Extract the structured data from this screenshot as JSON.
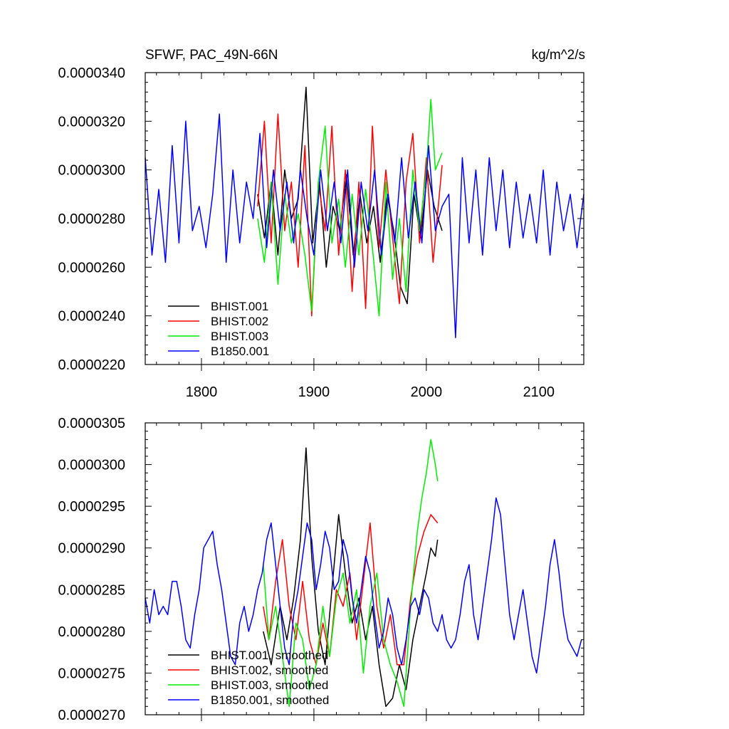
{
  "chart_data": [
    {
      "type": "line",
      "title_left": "SFWF, PAC_49N-66N",
      "title_right": "kg/m^2/s",
      "xlabel": "",
      "ylabel": "",
      "xlim": [
        1750,
        2140
      ],
      "ylim": [
        2.2e-05,
        3.4e-05
      ],
      "x_ticks": [
        1800,
        1900,
        2000,
        2100
      ],
      "x_tick_labels": [
        "1800",
        "1900",
        "2000",
        "2100"
      ],
      "y_ticks": [
        2.2e-05,
        2.4e-05,
        2.6e-05,
        2.8e-05,
        3e-05,
        3.2e-05,
        3.4e-05
      ],
      "y_tick_labels": [
        "0.0000220",
        "0.0000240",
        "0.0000260",
        "0.0000280",
        "0.0000300",
        "0.0000320",
        "0.0000340"
      ],
      "grid": false,
      "legend_position": "bottom-left",
      "series": [
        {
          "name": "BHIST.001",
          "color": "#000000",
          "x_range": [
            1850,
            2014
          ],
          "x": [
            1850,
            1856,
            1862,
            1868,
            1874,
            1880,
            1886,
            1893,
            1899,
            1905,
            1911,
            1917,
            1923,
            1929,
            1935,
            1941,
            1947,
            1953,
            1959,
            1965,
            1971,
            1977,
            1983,
            1989,
            1995,
            2001,
            2007,
            2014
          ],
          "y": [
            2.9e-05,
            2.72e-05,
            2.95e-05,
            2.65e-05,
            3e-05,
            2.8e-05,
            2.88e-05,
            3.34e-05,
            2.7e-05,
            2.95e-05,
            2.6e-05,
            2.85e-05,
            2.75e-05,
            2.98e-05,
            2.65e-05,
            2.9e-05,
            2.7e-05,
            2.85e-05,
            2.62e-05,
            2.9e-05,
            2.75e-05,
            2.52e-05,
            2.45e-05,
            2.9e-05,
            2.72e-05,
            3e-05,
            2.85e-05,
            2.75e-05
          ]
        },
        {
          "name": "BHIST.002",
          "color": "#ff0000",
          "x_range": [
            1850,
            2014
          ],
          "x": [
            1850,
            1856,
            1862,
            1868,
            1874,
            1880,
            1886,
            1892,
            1898,
            1904,
            1910,
            1916,
            1922,
            1928,
            1934,
            1940,
            1946,
            1952,
            1958,
            1964,
            1970,
            1976,
            1982,
            1988,
            1994,
            2000,
            2006,
            2014
          ],
          "y": [
            2.85e-05,
            3.2e-05,
            2.7e-05,
            3.23e-05,
            2.75e-05,
            2.95e-05,
            2.6e-05,
            3.1e-05,
            2.4e-05,
            2.95e-05,
            2.75e-05,
            3.18e-05,
            2.65e-05,
            3e-05,
            2.5e-05,
            2.95e-05,
            2.43e-05,
            3.18e-05,
            2.68e-05,
            3e-05,
            2.72e-05,
            2.45e-05,
            2.95e-05,
            3.15e-05,
            2.7e-05,
            3.05e-05,
            2.62e-05,
            3.02e-05
          ]
        },
        {
          "name": "BHIST.003",
          "color": "#00ee00",
          "x_range": [
            1850,
            2014
          ],
          "x": [
            1850,
            1856,
            1862,
            1868,
            1874,
            1880,
            1886,
            1892,
            1898,
            1904,
            1910,
            1916,
            1922,
            1928,
            1934,
            1940,
            1946,
            1952,
            1958,
            1964,
            1970,
            1976,
            1982,
            1988,
            1994,
            2000,
            2004,
            2008,
            2014
          ],
          "y": [
            2.8e-05,
            2.62e-05,
            2.95e-05,
            2.53e-05,
            2.9e-05,
            2.7e-05,
            2.82e-05,
            2.65e-05,
            2.42e-05,
            2.95e-05,
            3.18e-05,
            2.7e-05,
            2.88e-05,
            2.6e-05,
            2.9e-05,
            2.65e-05,
            2.92e-05,
            2.68e-05,
            2.4e-05,
            2.95e-05,
            2.55e-05,
            2.8e-05,
            2.5e-05,
            3e-05,
            2.75e-05,
            3e-05,
            3.29e-05,
            3e-05,
            3.07e-05
          ]
        },
        {
          "name": "B1850.001",
          "color": "#0000ff",
          "x_range": [
            1750,
            2140
          ],
          "x": [
            1750,
            1756,
            1762,
            1768,
            1774,
            1780,
            1786,
            1792,
            1798,
            1804,
            1810,
            1816,
            1822,
            1828,
            1834,
            1840,
            1846,
            1852,
            1858,
            1864,
            1870,
            1876,
            1882,
            1888,
            1894,
            1900,
            1906,
            1912,
            1918,
            1924,
            1930,
            1936,
            1942,
            1948,
            1954,
            1960,
            1966,
            1972,
            1978,
            1984,
            1990,
            1996,
            2002,
            2008,
            2014,
            2020,
            2026,
            2032,
            2038,
            2044,
            2050,
            2056,
            2062,
            2068,
            2074,
            2080,
            2086,
            2092,
            2098,
            2104,
            2110,
            2116,
            2122,
            2128,
            2134,
            2140
          ],
          "y": [
            3.05e-05,
            2.65e-05,
            2.92e-05,
            2.62e-05,
            3.1e-05,
            2.7e-05,
            3.2e-05,
            2.75e-05,
            2.85e-05,
            2.68e-05,
            2.9e-05,
            3.23e-05,
            2.62e-05,
            3e-05,
            2.7e-05,
            2.95e-05,
            2.8e-05,
            3.15e-05,
            2.68e-05,
            3e-05,
            2.75e-05,
            2.95e-05,
            2.7e-05,
            3e-05,
            2.8e-05,
            2.65e-05,
            3e-05,
            2.75e-05,
            2.95e-05,
            2.7e-05,
            3e-05,
            2.6e-05,
            2.95e-05,
            2.75e-05,
            3e-05,
            2.65e-05,
            2.9e-05,
            2.7e-05,
            3.05e-05,
            2.72e-05,
            2.95e-05,
            2.7e-05,
            3.1e-05,
            2.75e-05,
            2.85e-05,
            2.9e-05,
            2.31e-05,
            3.05e-05,
            2.7e-05,
            3e-05,
            2.65e-05,
            3.05e-05,
            2.75e-05,
            3e-05,
            2.68e-05,
            2.95e-05,
            2.72e-05,
            2.9e-05,
            2.7e-05,
            3e-05,
            2.65e-05,
            2.95e-05,
            2.75e-05,
            2.9e-05,
            2.68e-05,
            2.9e-05
          ]
        }
      ],
      "legend": [
        "BHIST.001",
        "BHIST.002",
        "BHIST.003",
        "B1850.001"
      ]
    },
    {
      "type": "line",
      "title_left": "",
      "title_right": "",
      "xlabel": "",
      "ylabel": "",
      "xlim": [
        1750,
        2140
      ],
      "ylim": [
        2.7e-05,
        3.05e-05
      ],
      "x_ticks": [
        1800,
        1900,
        2000,
        2100
      ],
      "x_tick_labels": [],
      "y_ticks": [
        2.7e-05,
        2.75e-05,
        2.8e-05,
        2.85e-05,
        2.9e-05,
        2.95e-05,
        3e-05,
        3.05e-05
      ],
      "y_tick_labels": [
        "0.0000270",
        "0.0000275",
        "0.0000280",
        "0.0000285",
        "0.0000290",
        "0.0000295",
        "0.0000300",
        "0.0000305"
      ],
      "grid": false,
      "legend_position": "bottom-left",
      "series": [
        {
          "name": "BHIST.001, smoothed",
          "color": "#000000",
          "x": [
            1855,
            1862,
            1870,
            1876,
            1882,
            1888,
            1893,
            1898,
            1904,
            1910,
            1916,
            1922,
            1928,
            1934,
            1940,
            1946,
            1952,
            1958,
            1964,
            1970,
            1976,
            1982,
            1988,
            1994,
            2000,
            2004,
            2008,
            2010
          ],
          "y": [
            2.8e-05,
            2.76e-05,
            2.83e-05,
            2.79e-05,
            2.84e-05,
            2.91e-05,
            3.02e-05,
            2.89e-05,
            2.8e-05,
            2.76e-05,
            2.85e-05,
            2.94e-05,
            2.87e-05,
            2.81e-05,
            2.84e-05,
            2.79e-05,
            2.83e-05,
            2.76e-05,
            2.71e-05,
            2.72e-05,
            2.76e-05,
            2.73e-05,
            2.79e-05,
            2.83e-05,
            2.87e-05,
            2.9e-05,
            2.89e-05,
            2.91e-05
          ]
        },
        {
          "name": "BHIST.002, smoothed",
          "color": "#ff0000",
          "x": [
            1855,
            1860,
            1866,
            1872,
            1878,
            1884,
            1890,
            1896,
            1902,
            1908,
            1914,
            1920,
            1926,
            1932,
            1938,
            1944,
            1950,
            1956,
            1962,
            1968,
            1974,
            1980,
            1986,
            1992,
            1998,
            2004,
            2010
          ],
          "y": [
            2.83e-05,
            2.79e-05,
            2.86e-05,
            2.91e-05,
            2.83e-05,
            2.79e-05,
            2.86e-05,
            2.79e-05,
            2.76e-05,
            2.81e-05,
            2.77e-05,
            2.85e-05,
            2.83e-05,
            2.87e-05,
            2.79e-05,
            2.86e-05,
            2.93e-05,
            2.83e-05,
            2.78e-05,
            2.82e-05,
            2.76e-05,
            2.76e-05,
            2.84e-05,
            2.89e-05,
            2.92e-05,
            2.94e-05,
            2.93e-05
          ]
        },
        {
          "name": "BHIST.003, smoothed",
          "color": "#00ee00",
          "x": [
            1855,
            1860,
            1866,
            1872,
            1878,
            1884,
            1890,
            1896,
            1902,
            1908,
            1914,
            1920,
            1926,
            1932,
            1938,
            1944,
            1950,
            1956,
            1962,
            1968,
            1974,
            1980,
            1986,
            1992,
            1996,
            2000,
            2004,
            2008,
            2010
          ],
          "y": [
            2.88e-05,
            2.79e-05,
            2.83e-05,
            2.77e-05,
            2.71e-05,
            2.81e-05,
            2.79e-05,
            2.73e-05,
            2.76e-05,
            2.83e-05,
            2.77e-05,
            2.84e-05,
            2.87e-05,
            2.81e-05,
            2.85e-05,
            2.75e-05,
            2.83e-05,
            2.87e-05,
            2.79e-05,
            2.76e-05,
            2.74e-05,
            2.71e-05,
            2.83e-05,
            2.92e-05,
            2.96e-05,
            2.99e-05,
            3.03e-05,
            3e-05,
            2.98e-05
          ]
        },
        {
          "name": "B1850.001, smoothed",
          "color": "#0000ff",
          "x": [
            1750,
            1754,
            1758,
            1762,
            1766,
            1770,
            1774,
            1778,
            1782,
            1786,
            1790,
            1794,
            1798,
            1802,
            1806,
            1810,
            1814,
            1818,
            1822,
            1826,
            1830,
            1834,
            1838,
            1842,
            1846,
            1850,
            1854,
            1858,
            1862,
            1866,
            1870,
            1874,
            1878,
            1882,
            1886,
            1890,
            1894,
            1898,
            1902,
            1906,
            1910,
            1914,
            1918,
            1922,
            1926,
            1930,
            1934,
            1938,
            1942,
            1946,
            1950,
            1954,
            1958,
            1962,
            1966,
            1970,
            1974,
            1978,
            1982,
            1986,
            1990,
            1994,
            1998,
            2002,
            2006,
            2010,
            2014,
            2018,
            2022,
            2026,
            2030,
            2034,
            2038,
            2042,
            2046,
            2050,
            2054,
            2058,
            2062,
            2066,
            2070,
            2074,
            2078,
            2082,
            2086,
            2090,
            2094,
            2098,
            2102,
            2106,
            2110,
            2114,
            2118,
            2122,
            2126,
            2130,
            2134,
            2138
          ],
          "y": [
            2.84e-05,
            2.81e-05,
            2.85e-05,
            2.82e-05,
            2.83e-05,
            2.82e-05,
            2.86e-05,
            2.86e-05,
            2.83e-05,
            2.79e-05,
            2.78e-05,
            2.82e-05,
            2.85e-05,
            2.9e-05,
            2.91e-05,
            2.92e-05,
            2.88e-05,
            2.85e-05,
            2.81e-05,
            2.77e-05,
            2.76e-05,
            2.81e-05,
            2.83e-05,
            2.8e-05,
            2.82e-05,
            2.85e-05,
            2.87e-05,
            2.91e-05,
            2.93e-05,
            2.88e-05,
            2.83e-05,
            2.78e-05,
            2.76e-05,
            2.82e-05,
            2.85e-05,
            2.89e-05,
            2.93e-05,
            2.91e-05,
            2.85e-05,
            2.88e-05,
            2.92e-05,
            2.9e-05,
            2.85e-05,
            2.86e-05,
            2.91e-05,
            2.89e-05,
            2.84e-05,
            2.81e-05,
            2.85e-05,
            2.89e-05,
            2.87e-05,
            2.82e-05,
            2.78e-05,
            2.8e-05,
            2.84e-05,
            2.82e-05,
            2.78e-05,
            2.76e-05,
            2.79e-05,
            2.83e-05,
            2.84e-05,
            2.82e-05,
            2.85e-05,
            2.84e-05,
            2.81e-05,
            2.8e-05,
            2.82e-05,
            2.79e-05,
            2.78e-05,
            2.79e-05,
            2.82e-05,
            2.86e-05,
            2.88e-05,
            2.82e-05,
            2.79e-05,
            2.83e-05,
            2.87e-05,
            2.91e-05,
            2.96e-05,
            2.94e-05,
            2.88e-05,
            2.82e-05,
            2.79e-05,
            2.82e-05,
            2.85e-05,
            2.81e-05,
            2.77e-05,
            2.75e-05,
            2.79e-05,
            2.83e-05,
            2.88e-05,
            2.91e-05,
            2.87e-05,
            2.82e-05,
            2.79e-05,
            2.78e-05,
            2.77e-05,
            2.79e-05
          ]
        }
      ],
      "legend": [
        "BHIST.001, smoothed",
        "BHIST.002, smoothed",
        "BHIST.003, smoothed",
        "B1850.001, smoothed"
      ]
    }
  ]
}
